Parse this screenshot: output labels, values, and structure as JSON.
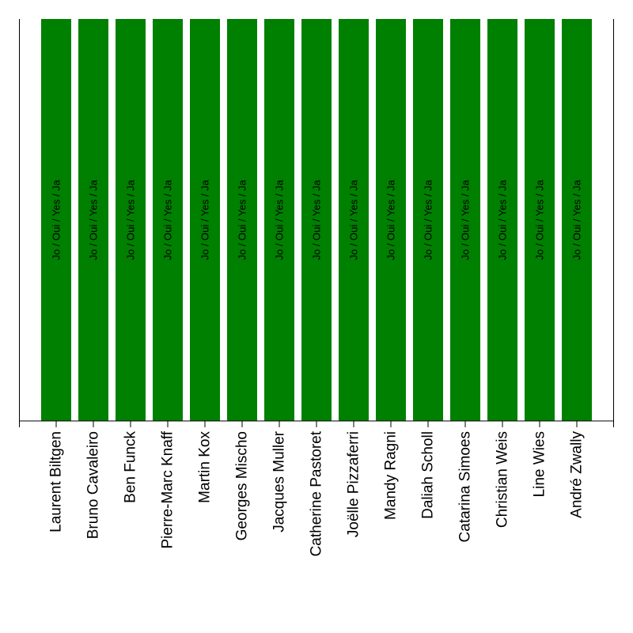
{
  "chart_data": {
    "type": "bar",
    "orientation": "vertical",
    "categories": [
      "Laurent Biltgen",
      "Bruno Cavaleiro",
      "Ben Funck",
      "Pierre-Marc Knaff",
      "Martin Kox",
      "Georges Mischo",
      "Jacques Muller",
      "Catherine Pastoret",
      "Joëlle Pizzaferri",
      "Mandy Ragni",
      "Daliah Scholl",
      "Catarina Simoes",
      "Christian Weis",
      "Line Wies",
      "André Zwally"
    ],
    "values": [
      1,
      1,
      1,
      1,
      1,
      1,
      1,
      1,
      1,
      1,
      1,
      1,
      1,
      1,
      1
    ],
    "bar_labels": [
      "Jo / Oui / Yes / Ja",
      "Jo / Oui / Yes / Ja",
      "Jo / Oui / Yes / Ja",
      "Jo / Oui / Yes / Ja",
      "Jo / Oui / Yes / Ja",
      "Jo / Oui / Yes / Ja",
      "Jo / Oui / Yes / Ja",
      "Jo / Oui / Yes / Ja",
      "Jo / Oui / Yes / Ja",
      "Jo / Oui / Yes / Ja",
      "Jo / Oui / Yes / Ja",
      "Jo / Oui / Yes / Ja",
      "Jo / Oui / Yes / Ja",
      "Jo / Oui / Yes / Ja",
      "Jo / Oui / Yes / Ja"
    ],
    "title": "",
    "xlabel": "",
    "ylabel": "",
    "ylim": [
      0,
      1
    ],
    "grid": false,
    "legend": "none",
    "bar_color": "#008000"
  }
}
